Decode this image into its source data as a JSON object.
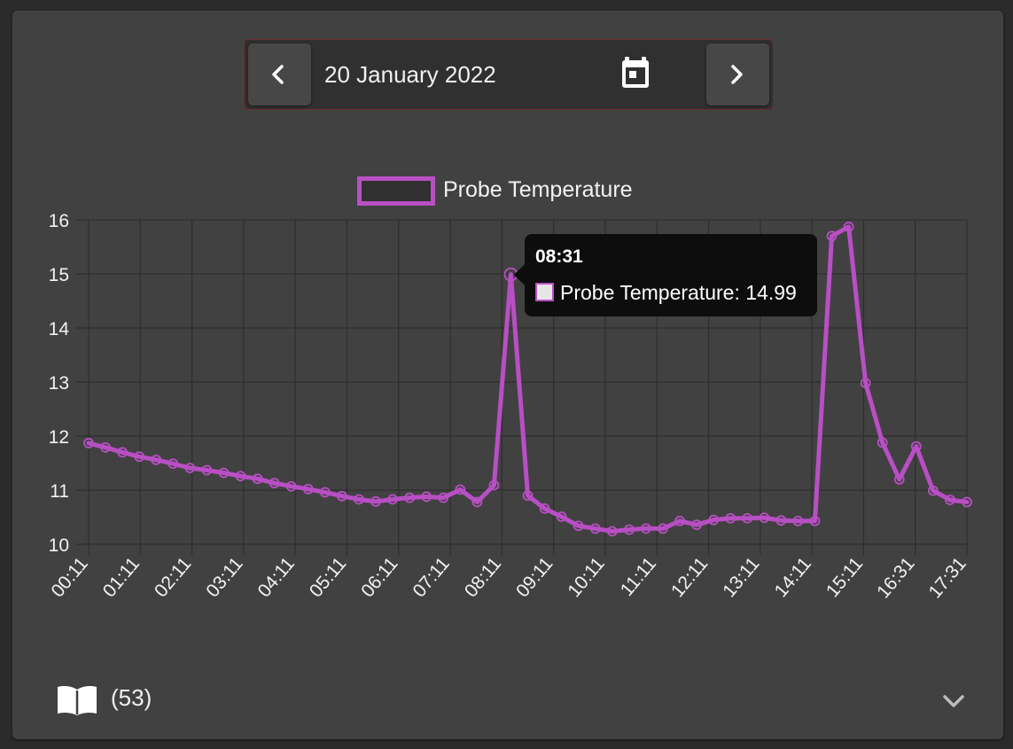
{
  "date_nav": {
    "date_label": "20 January 2022",
    "prev_icon": "chevron-left-icon",
    "next_icon": "chevron-right-icon",
    "calendar_icon": "calendar-icon"
  },
  "colors": {
    "series": "#b84fc4",
    "card": "#414141",
    "background": "#2b2b2b",
    "grid": "#2f2f2f",
    "tooltip": "#0d0d0d"
  },
  "tooltip": {
    "title": "08:31",
    "label": "Probe Temperature: 14.99"
  },
  "footer": {
    "count_label": "(53)",
    "book_icon": "book-open-icon",
    "expand_icon": "chevron-down-icon"
  },
  "chart_data": {
    "type": "line",
    "xlabel": "",
    "ylabel": "",
    "ylim": [
      10,
      16
    ],
    "yticks": [
      10,
      11,
      12,
      13,
      14,
      15,
      16
    ],
    "x_tick_labels": [
      "00:11",
      "01:11",
      "02:11",
      "03:11",
      "04:11",
      "05:11",
      "06:11",
      "07:11",
      "08:11",
      "09:11",
      "10:11",
      "11:11",
      "12:11",
      "13:11",
      "14:11",
      "15:11",
      "16:31",
      "17:31"
    ],
    "grid": true,
    "legend_position": "top-center",
    "series": [
      {
        "name": "Probe Temperature",
        "values": [
          11.87,
          11.79,
          11.7,
          11.62,
          11.56,
          11.49,
          11.41,
          11.37,
          11.32,
          11.26,
          11.21,
          11.13,
          11.07,
          11.02,
          10.96,
          10.89,
          10.83,
          10.79,
          10.83,
          10.86,
          10.88,
          10.86,
          11.01,
          10.78,
          11.09,
          14.99,
          10.9,
          10.66,
          10.51,
          10.34,
          10.29,
          10.24,
          10.27,
          10.29,
          10.29,
          10.43,
          10.36,
          10.45,
          10.48,
          10.48,
          10.49,
          10.44,
          10.43,
          10.43,
          15.7,
          15.87,
          12.98,
          11.88,
          11.2,
          11.81,
          10.99,
          10.82,
          10.78
        ]
      }
    ]
  }
}
